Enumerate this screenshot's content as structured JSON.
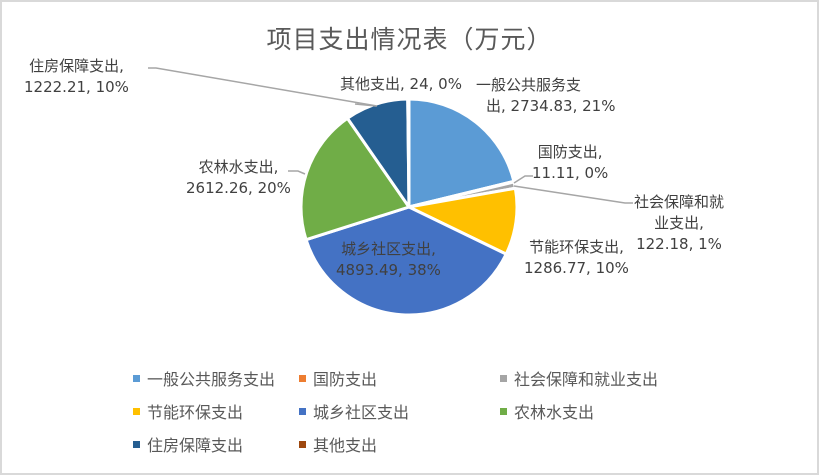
{
  "chart_data": {
    "type": "pie",
    "title": "项目支出情况表（万元）",
    "unit": "万元",
    "categories": [
      "一般公共服务支出",
      "国防支出",
      "社会保障和就业支出",
      "节能环保支出",
      "城乡社区支出",
      "农林水支出",
      "住房保障支出",
      "其他支出"
    ],
    "values": [
      2734.83,
      11.11,
      122.18,
      1286.77,
      4893.49,
      2612.26,
      1222.21,
      24
    ],
    "percent_labels": [
      "21%",
      "0%",
      "1%",
      "10%",
      "38%",
      "20%",
      "10%",
      "0%"
    ],
    "colors": [
      "#5b9bd5",
      "#ed7d31",
      "#a5a5a5",
      "#ffc000",
      "#4472c4",
      "#70ad47",
      "#255e91",
      "#9e480e"
    ],
    "legend_position": "bottom",
    "start_angle": "12 o'clock, clockwise"
  },
  "labels": {
    "l0": [
      "一般公共服务支",
      "出, 2734.83, 21%"
    ],
    "l1": [
      "国防支出,",
      "11.11, 0%"
    ],
    "l2": [
      "社会保障和就",
      "业支出,",
      "122.18, 1%"
    ],
    "l3": [
      "节能环保支出,",
      "1286.77, 10%"
    ],
    "l4": [
      "城乡社区支出,",
      "4893.49, 38%"
    ],
    "l5": [
      "农林水支出,",
      "2612.26, 20%"
    ],
    "l6": [
      "住房保障支出,",
      "1222.21, 10%"
    ],
    "l7": [
      "其他支出, 24, 0%"
    ]
  }
}
